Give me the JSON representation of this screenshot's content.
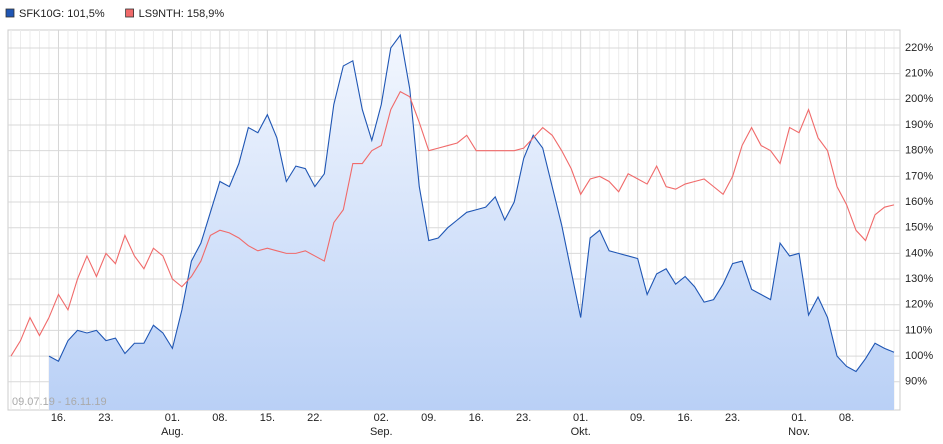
{
  "chart_data": {
    "type": "line",
    "range_label": "09.07.19 - 16.11.19",
    "categories": [
      null,
      null,
      null,
      null,
      null,
      "16.",
      null,
      null,
      null,
      null,
      "23.",
      null,
      null,
      null,
      null,
      null,
      null,
      "01.",
      null,
      null,
      null,
      null,
      "08.",
      null,
      null,
      null,
      null,
      "15.",
      null,
      null,
      null,
      null,
      "22.",
      null,
      null,
      null,
      null,
      null,
      null,
      "02.",
      null,
      null,
      null,
      null,
      "09.",
      null,
      null,
      null,
      null,
      "16.",
      null,
      null,
      null,
      null,
      "23.",
      null,
      null,
      null,
      null,
      null,
      "01.",
      null,
      null,
      null,
      null,
      null,
      "09.",
      null,
      null,
      null,
      null,
      "16.",
      null,
      null,
      null,
      null,
      "23.",
      null,
      null,
      null,
      null,
      null,
      null,
      "01.",
      null,
      null,
      null,
      null,
      "08.",
      null,
      null,
      null,
      null,
      null
    ],
    "months": [
      null,
      null,
      null,
      null,
      null,
      null,
      null,
      null,
      null,
      null,
      null,
      null,
      null,
      null,
      null,
      null,
      null,
      "Aug.",
      null,
      null,
      null,
      null,
      null,
      null,
      null,
      null,
      null,
      null,
      null,
      null,
      null,
      null,
      null,
      null,
      null,
      null,
      null,
      null,
      null,
      "Sep.",
      null,
      null,
      null,
      null,
      null,
      null,
      null,
      null,
      null,
      null,
      null,
      null,
      null,
      null,
      null,
      null,
      null,
      null,
      null,
      null,
      "Okt.",
      null,
      null,
      null,
      null,
      null,
      null,
      null,
      null,
      null,
      null,
      null,
      null,
      null,
      null,
      null,
      null,
      null,
      null,
      null,
      null,
      null,
      null,
      "Nov.",
      null,
      null,
      null,
      null,
      null,
      null,
      null,
      null,
      null,
      null
    ],
    "series": [
      {
        "name": "SFK10G: 101,5%",
        "color": "#1f56b4",
        "area": true,
        "values": [
          null,
          null,
          null,
          null,
          100,
          98,
          106,
          110,
          109,
          110,
          106,
          107,
          101,
          105,
          105,
          112,
          109,
          103,
          118,
          137,
          144,
          156,
          168,
          166,
          175,
          189,
          187,
          194,
          185,
          168,
          174,
          173,
          166,
          171,
          198,
          213,
          215,
          196,
          184,
          198,
          220,
          225,
          204,
          166,
          145,
          146,
          150,
          153,
          156,
          157,
          158,
          162,
          153,
          160,
          177,
          186,
          181,
          166,
          151,
          133,
          115,
          146,
          149,
          141,
          140,
          139,
          138,
          124,
          132,
          134,
          128,
          131,
          127,
          121,
          122,
          128,
          136,
          137,
          126,
          124,
          122,
          144,
          139,
          140,
          116,
          123,
          115,
          100,
          96,
          94,
          99,
          105,
          103,
          101.5
        ]
      },
      {
        "name": "LS9NTH: 158,9%",
        "color": "#f06a6a",
        "area": false,
        "values": [
          100,
          106,
          115,
          108,
          115,
          124,
          118,
          130,
          139,
          131,
          140,
          136,
          147,
          139,
          134,
          142,
          139,
          130,
          127,
          131,
          137,
          147,
          149,
          148,
          146,
          143,
          141,
          142,
          141,
          140,
          140,
          141,
          139,
          137,
          152,
          157,
          175,
          175,
          180,
          182,
          196,
          203,
          201,
          191,
          180,
          181,
          182,
          183,
          186,
          180,
          180,
          180,
          180,
          180,
          181,
          185,
          189,
          186,
          180,
          173,
          163,
          169,
          170,
          168,
          164,
          171,
          169,
          167,
          174,
          166,
          165,
          167,
          168,
          169,
          166,
          163,
          170,
          182,
          189,
          182,
          180,
          175,
          189,
          187,
          196,
          185,
          180,
          166,
          159,
          149,
          145,
          155,
          158,
          158.9
        ]
      }
    ],
    "ylim": [
      79,
      227
    ],
    "yticks": [
      {
        "value": 90,
        "label": "90%"
      },
      {
        "value": 100,
        "label": "100%"
      },
      {
        "value": 110,
        "label": "110%"
      },
      {
        "value": 120,
        "label": "120%"
      },
      {
        "value": 130,
        "label": "130%"
      },
      {
        "value": 140,
        "label": "140%"
      },
      {
        "value": 150,
        "label": "150%"
      },
      {
        "value": 160,
        "label": "160%"
      },
      {
        "value": 170,
        "label": "170%"
      },
      {
        "value": 180,
        "label": "180%"
      },
      {
        "value": 190,
        "label": "190%"
      },
      {
        "value": 200,
        "label": "200%"
      },
      {
        "value": 210,
        "label": "210%"
      },
      {
        "value": 220,
        "label": "220%"
      }
    ],
    "grid": true
  }
}
